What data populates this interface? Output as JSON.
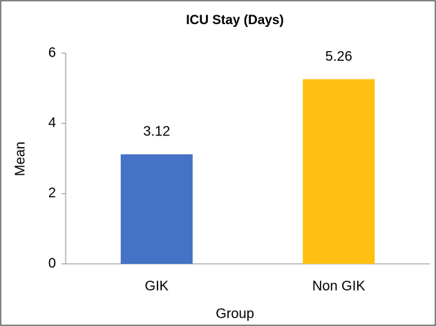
{
  "chart_data": {
    "type": "bar",
    "title": "ICU Stay (Days)",
    "categories": [
      "GIK",
      "Non GIK"
    ],
    "values": [
      3.12,
      5.26
    ],
    "colors": [
      "#4472c4",
      "#ffc012"
    ],
    "xlabel": "Group",
    "ylabel": "Mean",
    "ylim": [
      0,
      6
    ],
    "yticks": [
      0,
      2,
      4,
      6
    ],
    "grid": false
  }
}
